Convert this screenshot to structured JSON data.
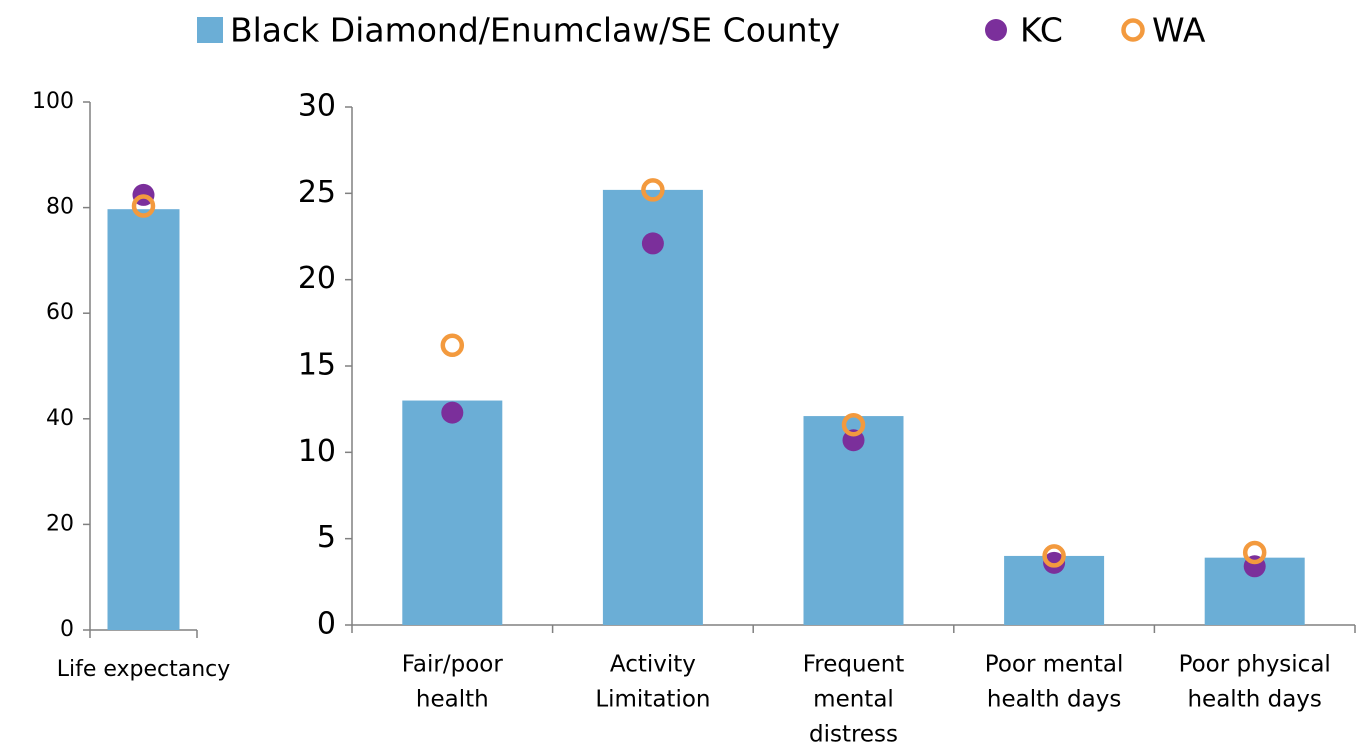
{
  "chart_data": [
    {
      "type": "bar",
      "categories": [
        [
          "Life expectancy"
        ]
      ],
      "series": [
        {
          "name": "Black Diamond/Enumclaw/SE County",
          "color": "#6baed6",
          "marker": "bar",
          "values": [
            79.7
          ]
        },
        {
          "name": "KC",
          "color": "#7b2f9b",
          "marker": "filled",
          "values": [
            82.4
          ]
        },
        {
          "name": "WA",
          "color": "#f39a3e",
          "marker": "open",
          "values": [
            80.3
          ]
        }
      ],
      "ylim": [
        0,
        100
      ],
      "yticks": [
        0,
        20,
        40,
        60,
        80,
        100
      ],
      "legend": "top"
    },
    {
      "type": "bar",
      "categories": [
        [
          "Fair/poor",
          "health"
        ],
        [
          "Activity",
          "Limitation"
        ],
        [
          "Frequent",
          "mental",
          "distress"
        ],
        [
          "Poor mental",
          "health days"
        ],
        [
          "Poor physical",
          "health days"
        ]
      ],
      "series": [
        {
          "color": "#6baed6",
          "marker": "bar",
          "values": [
            13.0,
            25.2,
            12.1,
            4.0,
            3.9
          ]
        },
        {
          "color": "#7b2f9b",
          "marker": "filled",
          "values": [
            12.3,
            22.1,
            10.7,
            3.6,
            3.4
          ]
        },
        {
          "color": "#f39a3e",
          "marker": "open",
          "values": [
            16.2,
            25.2,
            11.6,
            4.0,
            4.2
          ]
        }
      ],
      "ylim": [
        0,
        30
      ],
      "yticks": [
        0,
        5,
        10,
        15,
        20,
        25,
        30
      ]
    }
  ]
}
